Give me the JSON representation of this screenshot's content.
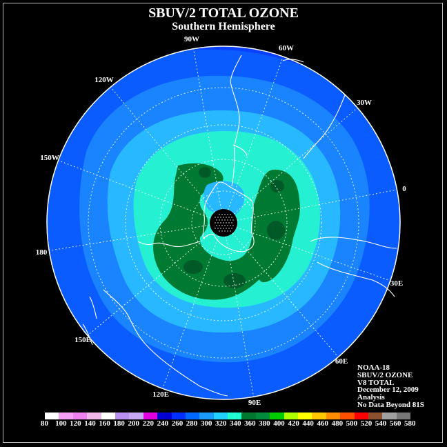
{
  "header": {
    "title": "SBUV/2 TOTAL OZONE",
    "subtitle": "Southern Hemisphere"
  },
  "map": {
    "projection": "south polar stereographic",
    "longitude_labels": [
      {
        "text": "90W"
      },
      {
        "text": "60W"
      },
      {
        "text": "30W"
      },
      {
        "text": "0"
      },
      {
        "text": "30E"
      },
      {
        "text": "60E"
      },
      {
        "text": "90E"
      },
      {
        "text": "120E"
      },
      {
        "text": "150E"
      },
      {
        "text": "180"
      },
      {
        "text": "150W"
      },
      {
        "text": "120W"
      }
    ],
    "data_gap": "No data south of 81S (black polar cap)"
  },
  "info": {
    "satellite": "NOAA-18",
    "product": "SBUV/2 OZONE",
    "version": "V8 TOTAL",
    "date": "December 12, 2009",
    "type": "Analysis",
    "coverage": "No Data Beyond 81S"
  },
  "colorbar": {
    "labels": [
      "80",
      "100",
      "120",
      "140",
      "160",
      "180",
      "200",
      "220",
      "240",
      "260",
      "280",
      "300",
      "320",
      "340",
      "360",
      "380",
      "400",
      "420",
      "440",
      "460",
      "480",
      "500",
      "520",
      "540",
      "560",
      "580"
    ],
    "colors": [
      "#ffffff",
      "#f4a0f4",
      "#ee82ee",
      "#f0b8e8",
      "#ffffff",
      "#b890f0",
      "#c8a8f0",
      "#e000e0",
      "#0000d0",
      "#0030ff",
      "#0068ff",
      "#1a9cff",
      "#20d0ff",
      "#20ffd0",
      "#007830",
      "#008c3c",
      "#00cc00",
      "#b0ff00",
      "#ffff00",
      "#ffc800",
      "#ff8c00",
      "#ff5000",
      "#ff0000",
      "#8c5030",
      "#a0a0a0",
      "#787878"
    ]
  }
}
